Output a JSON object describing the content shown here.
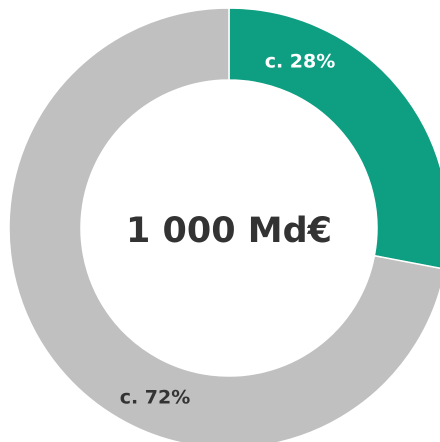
{
  "chart_data": {
    "type": "pie",
    "hole": true,
    "values": [
      28,
      72
    ],
    "value_labels": [
      "c. 28%",
      "c. 72%"
    ],
    "colors": [
      "#0e9e82",
      "#c0c0c0"
    ],
    "label_colors": [
      "#ffffff",
      "#333333"
    ],
    "center_label": "1 000 Md€"
  }
}
